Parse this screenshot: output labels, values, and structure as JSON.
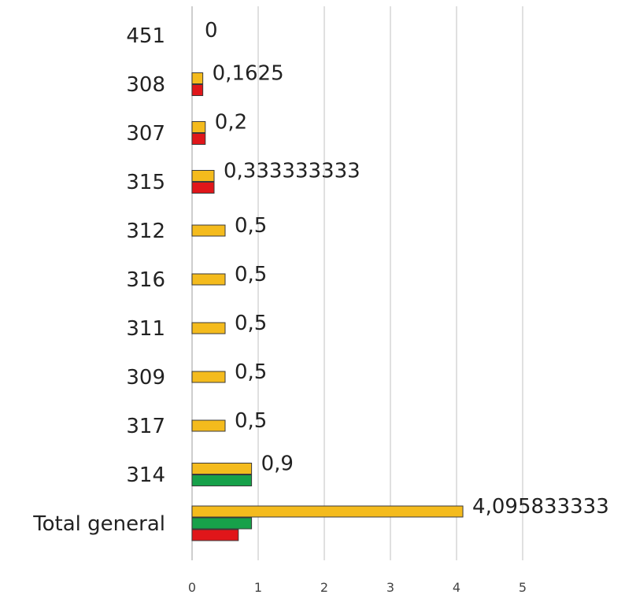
{
  "chart_data": {
    "type": "bar",
    "orientation": "horizontal",
    "categories": [
      "451",
      "308",
      "307",
      "315",
      "312",
      "316",
      "311",
      "309",
      "317",
      "314",
      "Total general"
    ],
    "series": [
      {
        "values": [
          0,
          0.1625,
          0.2,
          0.333333333,
          0.5,
          0.5,
          0.5,
          0.5,
          0.5,
          0.9,
          4.095833333
        ],
        "color": "#f4bb1d"
      },
      {
        "values": [
          null,
          null,
          null,
          null,
          null,
          null,
          null,
          null,
          null,
          0.9,
          0.9
        ],
        "color": "#17a14a"
      },
      {
        "values": [
          null,
          0.1625,
          0.2,
          0.333333333,
          null,
          null,
          null,
          null,
          null,
          null,
          0.7
        ],
        "color": "#e0161a"
      }
    ],
    "data_labels": [
      "0",
      "0,1625",
      "0,2",
      "0,333333333",
      "0,5",
      "0,5",
      "0,5",
      "0,5",
      "0,5",
      "0,9",
      "4,095833333"
    ],
    "x_ticks": [
      "0",
      "1",
      "2",
      "3",
      "4",
      "5"
    ],
    "xlim": [
      0,
      5
    ],
    "grid": true,
    "legend": "none",
    "title": "",
    "xlabel": "",
    "ylabel": ""
  }
}
